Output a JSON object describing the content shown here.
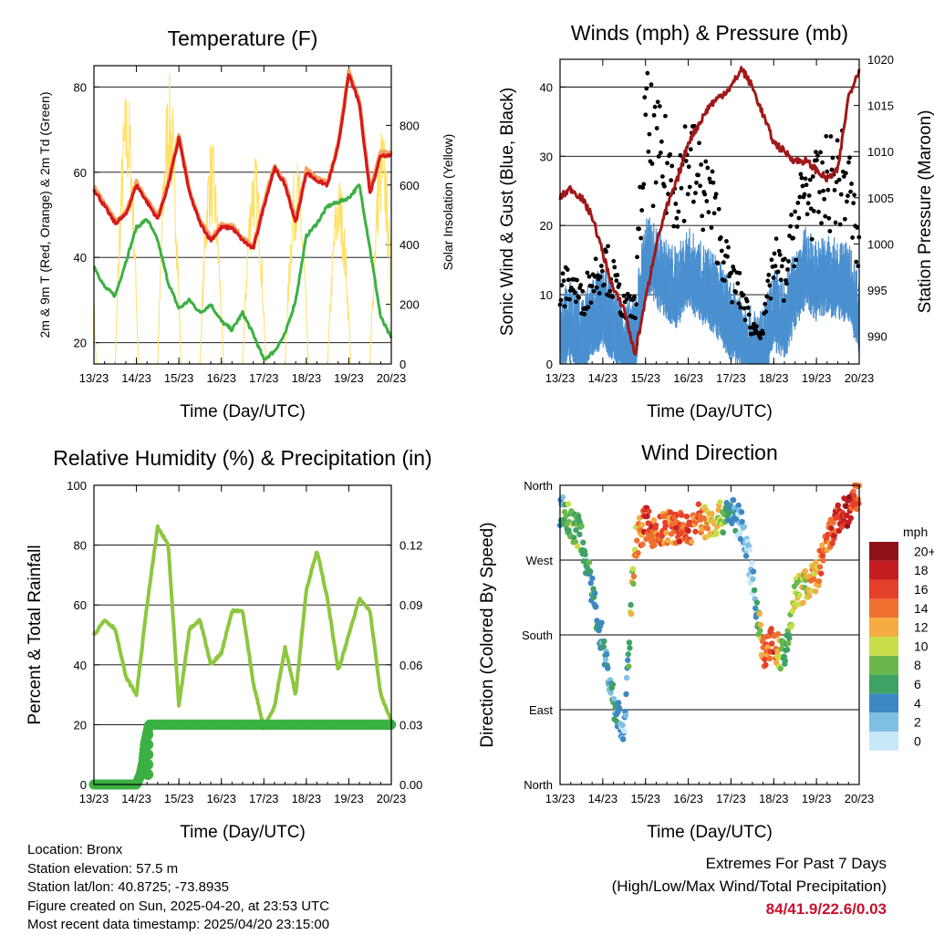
{
  "chart_data": [
    {
      "type": "line",
      "title": "Temperature (F)",
      "xlabel": "Time (Day/UTC)",
      "ylabel": "2m & 9m T (Red, Orange) & 2m Td (Green)",
      "ylabel_right": "Solar Insolation (Yellow)",
      "x_ticks": [
        "13/23",
        "14/23",
        "15/23",
        "16/23",
        "17/23",
        "18/23",
        "19/23",
        "20/23"
      ],
      "ylim": [
        15,
        85
      ],
      "y_ticks": [
        20,
        40,
        60,
        80
      ],
      "ylim_right": [
        0,
        1000
      ],
      "y_ticks_right": [
        0,
        200,
        400,
        600,
        800
      ],
      "grid": "horizontal",
      "colors": {
        "temp_2m": "#d7191c",
        "temp_9m": "#f4a261",
        "dewpoint": "#3cb043",
        "solar": "#ffe066"
      },
      "series": [
        {
          "name": "2m T",
          "axis": "left",
          "x": [
            13.0,
            13.25,
            13.5,
            13.75,
            14.0,
            14.25,
            14.5,
            14.75,
            15.0,
            15.25,
            15.5,
            15.75,
            16.0,
            16.25,
            16.5,
            16.75,
            17.0,
            17.25,
            17.5,
            17.75,
            18.0,
            18.25,
            18.5,
            18.75,
            19.0,
            19.25,
            19.5,
            19.75,
            20.0
          ],
          "values": [
            56,
            52,
            48,
            50,
            57,
            53,
            49,
            57,
            68,
            55,
            48,
            44,
            47,
            47,
            44,
            42,
            52,
            61,
            57,
            48,
            60,
            58,
            57,
            66,
            83,
            76,
            55,
            64,
            64
          ]
        },
        {
          "name": "2m Td",
          "axis": "left",
          "x": [
            13.0,
            13.25,
            13.5,
            13.75,
            14.0,
            14.25,
            14.5,
            14.75,
            15.0,
            15.25,
            15.5,
            15.75,
            16.0,
            16.25,
            16.5,
            16.75,
            17.0,
            17.25,
            17.5,
            17.75,
            18.0,
            18.25,
            18.5,
            18.75,
            19.0,
            19.25,
            19.5,
            19.75,
            20.0
          ],
          "values": [
            38,
            33,
            31,
            39,
            47,
            49,
            44,
            34,
            28,
            30,
            27,
            29,
            25,
            23,
            27,
            22,
            16,
            18,
            22,
            30,
            45,
            48,
            52,
            53,
            54,
            57,
            42,
            26,
            21
          ]
        },
        {
          "name": "Solar Insolation",
          "axis": "right",
          "x": [
            13.5,
            13.75,
            14.0,
            14.5,
            14.75,
            15.0,
            15.5,
            15.75,
            16.0,
            16.5,
            16.75,
            17.0,
            17.5,
            17.75,
            18.0,
            18.5,
            18.75,
            19.0,
            19.5,
            19.75,
            20.0
          ],
          "values": [
            0,
            900,
            0,
            0,
            960,
            0,
            0,
            700,
            0,
            0,
            730,
            0,
            0,
            690,
            0,
            0,
            620,
            0,
            0,
            860,
            650
          ]
        }
      ]
    },
    {
      "type": "scatter",
      "title": "Winds (mph) & Pressure (mb)",
      "xlabel": "Time (Day/UTC)",
      "ylabel": "Sonic Wind & Gust (Blue, Black)",
      "ylabel_right": "Station Pressure (Maroon)",
      "x_ticks": [
        "13/23",
        "14/23",
        "15/23",
        "16/23",
        "17/23",
        "18/23",
        "19/23",
        "20/23"
      ],
      "ylim": [
        0,
        44
      ],
      "y_ticks": [
        0,
        10,
        20,
        30,
        40
      ],
      "ylim_right": [
        987,
        1020
      ],
      "y_ticks_right": [
        990,
        995,
        1000,
        1005,
        1010,
        1015,
        1020
      ],
      "grid": "horizontal",
      "colors": {
        "wind": "#4a90d0",
        "gust": "#000000",
        "pressure": "#a01818"
      },
      "series": [
        {
          "name": "Sonic Wind",
          "x": [
            13.0,
            13.25,
            13.5,
            13.75,
            14.0,
            14.25,
            14.5,
            14.75,
            15.0,
            15.25,
            15.5,
            15.75,
            16.0,
            16.25,
            16.5,
            16.75,
            17.0,
            17.25,
            17.5,
            17.75,
            18.0,
            18.25,
            18.5,
            18.75,
            19.0,
            19.25,
            19.5,
            19.75,
            20.0
          ],
          "values": [
            5,
            6,
            4,
            7,
            8,
            6,
            3,
            4,
            16,
            14,
            12,
            11,
            14,
            12,
            11,
            9,
            6,
            5,
            2,
            2,
            8,
            6,
            11,
            14,
            12,
            13,
            12,
            12,
            7
          ]
        },
        {
          "name": "Gust",
          "x": [
            13.0,
            13.25,
            13.5,
            13.75,
            14.0,
            14.25,
            14.5,
            14.75,
            15.0,
            15.25,
            15.5,
            15.75,
            16.0,
            16.25,
            16.5,
            16.75,
            17.0,
            17.25,
            17.5,
            17.75,
            18.0,
            18.25,
            18.5,
            18.75,
            19.0,
            19.25,
            19.5,
            19.75,
            20.0
          ],
          "values": [
            10,
            12,
            9,
            12,
            15,
            12,
            8,
            8,
            34,
            30,
            28,
            26,
            30,
            26,
            24,
            18,
            12,
            10,
            5,
            5,
            15,
            12,
            20,
            25,
            24,
            26,
            27,
            26,
            15
          ]
        },
        {
          "name": "Station Pressure",
          "axis": "right",
          "x": [
            13.0,
            13.25,
            13.5,
            13.75,
            14.0,
            14.25,
            14.5,
            14.75,
            15.0,
            15.25,
            15.5,
            15.75,
            16.0,
            16.25,
            16.5,
            16.75,
            17.0,
            17.25,
            17.5,
            17.75,
            18.0,
            18.25,
            18.5,
            18.75,
            19.0,
            19.25,
            19.5,
            19.75,
            20.0
          ],
          "values": [
            1005,
            1006,
            1005,
            1003,
            999,
            995,
            993,
            988,
            994,
            1000,
            1004,
            1007,
            1011,
            1013,
            1015,
            1016,
            1017,
            1019,
            1017,
            1014,
            1011,
            1010,
            1009,
            1009,
            1008,
            1007,
            1008,
            1016,
            1019
          ]
        }
      ]
    },
    {
      "type": "line",
      "title": "Relative Humidity (%) & Precipitation (in)",
      "xlabel": "Time (Day/UTC)",
      "ylabel": "Percent & Total Rainfall",
      "x_ticks": [
        "13/23",
        "14/23",
        "15/23",
        "16/23",
        "17/23",
        "18/23",
        "19/23",
        "20/23"
      ],
      "ylim": [
        0,
        100
      ],
      "y_ticks": [
        0,
        20,
        40,
        60,
        80,
        100
      ],
      "ylim_right": [
        0,
        0.15
      ],
      "y_ticks_right": [
        "0.00",
        "0.03",
        "0.06",
        "0.09",
        "0.12"
      ],
      "grid": "horizontal",
      "colors": {
        "rh": "#8ec63f",
        "precip": "#3cb043"
      },
      "series": [
        {
          "name": "Relative Humidity",
          "axis": "left",
          "x": [
            13.0,
            13.25,
            13.5,
            13.75,
            14.0,
            14.25,
            14.5,
            14.75,
            15.0,
            15.25,
            15.5,
            15.75,
            16.0,
            16.25,
            16.5,
            16.75,
            17.0,
            17.25,
            17.5,
            17.75,
            18.0,
            18.25,
            18.5,
            18.75,
            19.0,
            19.25,
            19.5,
            19.75,
            20.0
          ],
          "values": [
            50,
            55,
            52,
            36,
            30,
            60,
            86,
            80,
            26,
            52,
            55,
            40,
            44,
            58,
            58,
            34,
            19,
            26,
            46,
            30,
            65,
            78,
            62,
            38,
            50,
            62,
            58,
            30,
            21
          ]
        },
        {
          "name": "Total Rainfall",
          "axis": "right",
          "x": [
            13.0,
            14.0,
            14.1,
            14.15,
            14.2,
            14.3,
            15.0,
            16.0,
            17.0,
            18.0,
            19.0,
            20.0
          ],
          "values": [
            0,
            0,
            0.005,
            0.01,
            0.02,
            0.03,
            0.03,
            0.03,
            0.03,
            0.03,
            0.03,
            0.03
          ]
        }
      ]
    },
    {
      "type": "scatter",
      "title": "Wind Direction",
      "xlabel": "Time (Day/UTC)",
      "ylabel": "Direction (Colored By Speed)",
      "x_ticks": [
        "13/23",
        "14/23",
        "15/23",
        "16/23",
        "17/23",
        "18/23",
        "19/23",
        "20/23"
      ],
      "y_ticks": [
        "North",
        "East",
        "South",
        "West",
        "North"
      ],
      "ylim": [
        0,
        360
      ],
      "grid": "horizontal",
      "colorbar_title": "mph",
      "colorbar_labels": [
        "0",
        "2",
        "4",
        "6",
        "8",
        "10",
        "12",
        "14",
        "16",
        "18",
        "20+"
      ],
      "colorbar_colors": [
        "#c6e8f8",
        "#7fbfe4",
        "#3d87c5",
        "#3fa265",
        "#6ab84b",
        "#c9dd4b",
        "#f5ac42",
        "#ef7030",
        "#e5402a",
        "#c41e22",
        "#8e1018"
      ],
      "series": [
        {
          "name": "Direction",
          "x": [
            13.0,
            13.25,
            13.5,
            13.75,
            14.0,
            14.25,
            14.5,
            14.75,
            15.0,
            15.25,
            15.5,
            15.75,
            16.0,
            16.25,
            16.5,
            16.75,
            17.0,
            17.25,
            17.5,
            17.75,
            18.0,
            18.25,
            18.5,
            18.75,
            19.0,
            19.25,
            19.5,
            19.75,
            20.0
          ],
          "values": [
            330,
            315,
            300,
            230,
            170,
            100,
            60,
            290,
            315,
            300,
            310,
            310,
            305,
            320,
            315,
            320,
            330,
            310,
            250,
            160,
            170,
            150,
            230,
            240,
            250,
            290,
            320,
            330,
            350
          ],
          "speed": [
            4,
            8,
            6,
            6,
            4,
            4,
            2,
            12,
            16,
            14,
            14,
            16,
            15,
            14,
            12,
            10,
            4,
            2,
            1,
            14,
            16,
            6,
            10,
            10,
            12,
            14,
            16,
            18,
            14
          ]
        }
      ]
    }
  ],
  "footer": {
    "location": "Location: Bronx",
    "elevation": "Station elevation: 57.5 m",
    "latlon": "Station lat/lon: 40.8725; -73.8935",
    "created": "Figure created on Sun, 2025-04-20, at 23:53 UTC",
    "recent": "Most recent data timestamp: 2025/04/20 23:15:00"
  },
  "extremes": {
    "title": "Extremes For Past 7 Days",
    "subtitle": "(High/Low/Max Wind/Total Precipitation)",
    "values": "84/41.9/22.6/0.03"
  }
}
